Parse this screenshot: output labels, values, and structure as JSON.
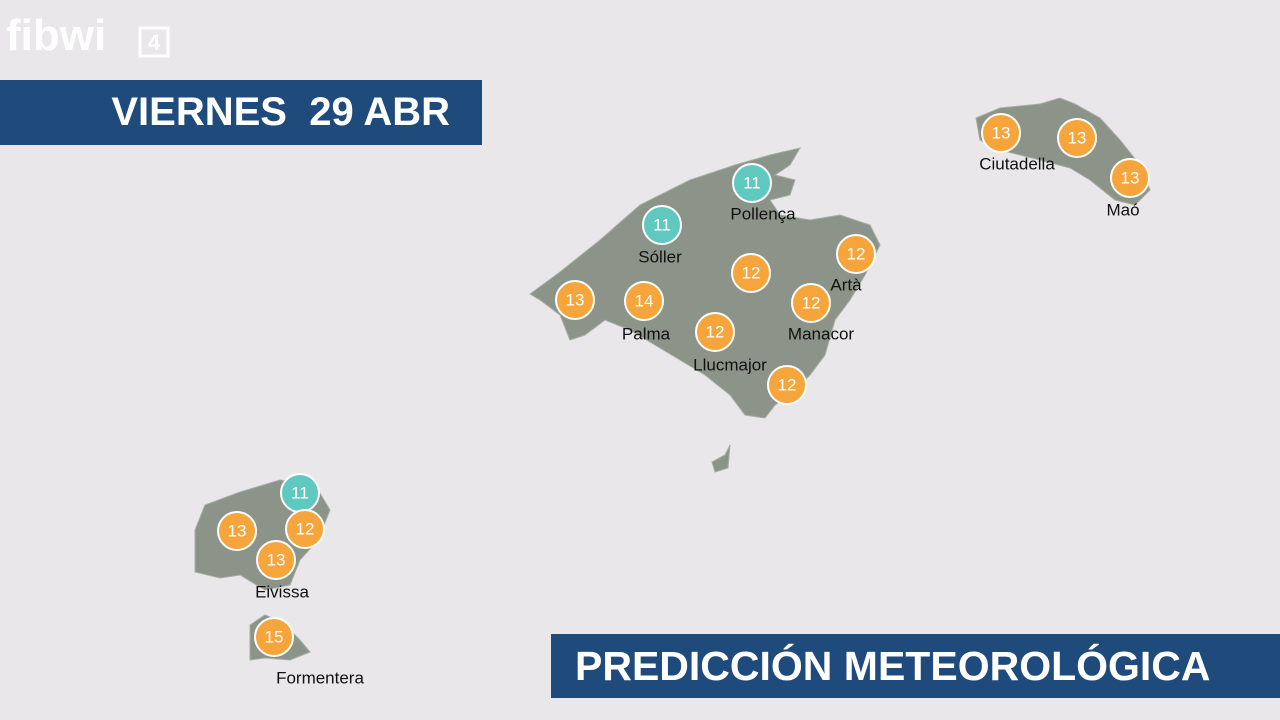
{
  "logo": {
    "name": "fibwi",
    "number": "4"
  },
  "date_banner": "VIERNES  29 ABR",
  "footer_banner": "PREDICCIÓN METEOROLÓGICA",
  "markers": [
    {
      "value": 11,
      "color": "#5fc9c0"
    },
    {
      "value": 11,
      "color": "#5fc9c0"
    },
    {
      "value": 13,
      "color": "#f6a53c"
    },
    {
      "value": 14,
      "color": "#f6a53c"
    },
    {
      "value": 12,
      "color": "#f6a53c"
    },
    {
      "value": 12,
      "color": "#f6a53c"
    },
    {
      "value": 12,
      "color": "#f6a53c"
    },
    {
      "value": 12,
      "color": "#f6a53c"
    },
    {
      "value": 12,
      "color": "#f6a53c"
    },
    {
      "value": 13,
      "color": "#f6a53c"
    },
    {
      "value": 13,
      "color": "#f6a53c"
    },
    {
      "value": 13,
      "color": "#f6a53c"
    },
    {
      "value": 11,
      "color": "#5fc9c0"
    },
    {
      "value": 13,
      "color": "#f6a53c"
    },
    {
      "value": 12,
      "color": "#f6a53c"
    },
    {
      "value": 13,
      "color": "#f6a53c"
    },
    {
      "value": 15,
      "color": "#f6a53c"
    }
  ],
  "places": [
    "Pollença",
    "Sóller",
    "Palma",
    "Llucmajor",
    "Manacor",
    "Artà",
    "Ciutadella",
    "Maó",
    "Eivissa",
    "Formentera"
  ]
}
